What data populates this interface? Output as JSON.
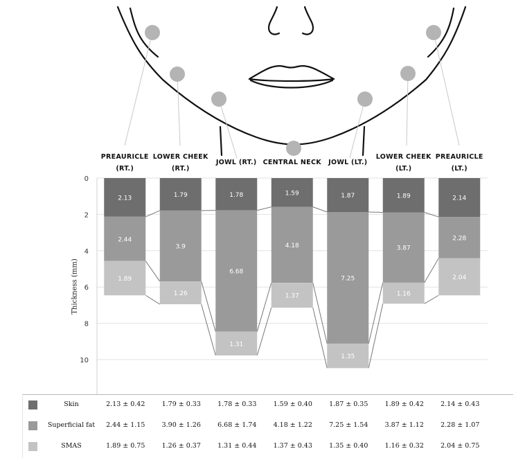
{
  "chart_data": {
    "type": "bar",
    "stacked": true,
    "categories": [
      "PREAURICLE (RT.)",
      "LOWER CHEEK (RT.)",
      "JOWL (RT.)",
      "CENTRAL NECK",
      "JOWL (LT.)",
      "LOWER CHEEK (LT.)",
      "PREAURICLE (LT.)"
    ],
    "category_lines": [
      [
        "PREAURICLE",
        "(RT.)"
      ],
      [
        "LOWER CHEEK",
        "(RT.)"
      ],
      [
        "JOWL (RT.)",
        ""
      ],
      [
        "CENTRAL NECK",
        ""
      ],
      [
        "JOWL (LT.)",
        ""
      ],
      [
        "LOWER CHEEK",
        "(LT.)"
      ],
      [
        "PREAURICLE",
        "(LT.)"
      ]
    ],
    "series": [
      {
        "name": "Skin",
        "color": "#6e6e6e",
        "values": [
          2.13,
          1.79,
          1.78,
          1.59,
          1.87,
          1.89,
          2.14
        ],
        "labels": [
          "2.13",
          "1.79",
          "1.78",
          "1.59",
          "1.87",
          "1.89",
          "2.14"
        ]
      },
      {
        "name": "Superficial fat",
        "color": "#9a9a9a",
        "values": [
          2.44,
          3.9,
          6.68,
          4.18,
          7.25,
          3.87,
          2.28
        ],
        "labels": [
          "2.44",
          "3.9",
          "6.68",
          "4.18",
          "7.25",
          "3.87",
          "2.28"
        ]
      },
      {
        "name": "SMAS",
        "color": "#c3c3c3",
        "values": [
          1.89,
          1.26,
          1.31,
          1.37,
          1.35,
          1.16,
          2.04
        ],
        "labels": [
          "1.89",
          "1.26",
          "1.31",
          "1.37",
          "1.35",
          "1.16",
          "2.04"
        ]
      }
    ],
    "ylabel": "Thickness (mm)",
    "ylim": [
      0,
      12
    ],
    "y_inverted": true,
    "yticks": [
      0,
      2,
      4,
      6,
      8,
      10
    ],
    "grid": true
  },
  "table": {
    "rows": [
      {
        "name": "Skin",
        "color": "#6e6e6e",
        "cells": [
          "2.13 ± 0.42",
          "1.79 ± 0.33",
          "1.78 ± 0.33",
          "1.59 ± 0.40",
          "1.87 ± 0.35",
          "1.89 ± 0.42",
          "2.14 ± 0.43"
        ]
      },
      {
        "name": "Superficial fat",
        "color": "#9a9a9a",
        "cells": [
          "2.44 ± 1.15",
          "3.90 ± 1.26",
          "6.68 ± 1.74",
          "4.18 ± 1.22",
          "7.25 ± 1.54",
          "3.87 ± 1.12",
          "2.28 ± 1.07"
        ]
      },
      {
        "name": "SMAS",
        "color": "#c3c3c3",
        "cells": [
          "1.89 ± 0.75",
          "1.26 ± 0.37",
          "1.31 ± 0.44",
          "1.37 ± 0.43",
          "1.35 ± 0.40",
          "1.16 ± 0.32",
          "2.04 ± 0.75"
        ]
      }
    ]
  }
}
